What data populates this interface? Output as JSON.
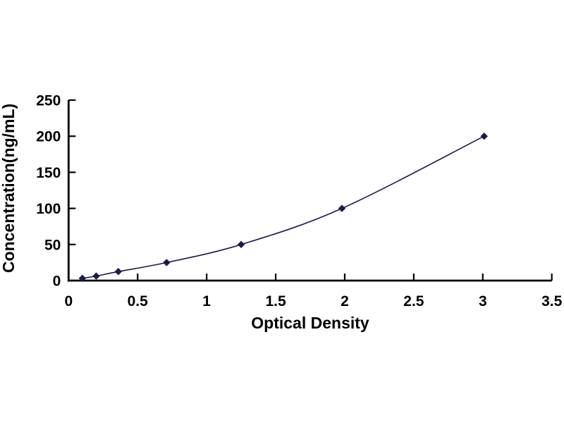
{
  "figure": {
    "background_color": "#ffffff"
  },
  "chart_data": {
    "type": "line",
    "subtype": "scatter-with-smooth-line",
    "title": "",
    "xlabel": "Optical Density",
    "ylabel": "Concentration(ng/mL)",
    "x": [
      0.1,
      0.2,
      0.36,
      0.71,
      1.25,
      1.98,
      3.01
    ],
    "y": [
      3.12,
      6.25,
      12.5,
      25,
      50,
      100,
      200
    ],
    "xlim": [
      0,
      3.5
    ],
    "ylim": [
      0,
      250
    ],
    "x_ticks": [
      0,
      0.5,
      1,
      1.5,
      2,
      2.5,
      3,
      3.5
    ],
    "y_ticks": [
      0,
      50,
      100,
      150,
      200,
      250
    ],
    "grid": false,
    "legend": false,
    "marker": "diamond",
    "colors": {
      "series": "#1b1a4e",
      "axis": "#000000",
      "text": "#000000",
      "background": "#ffffff"
    }
  }
}
